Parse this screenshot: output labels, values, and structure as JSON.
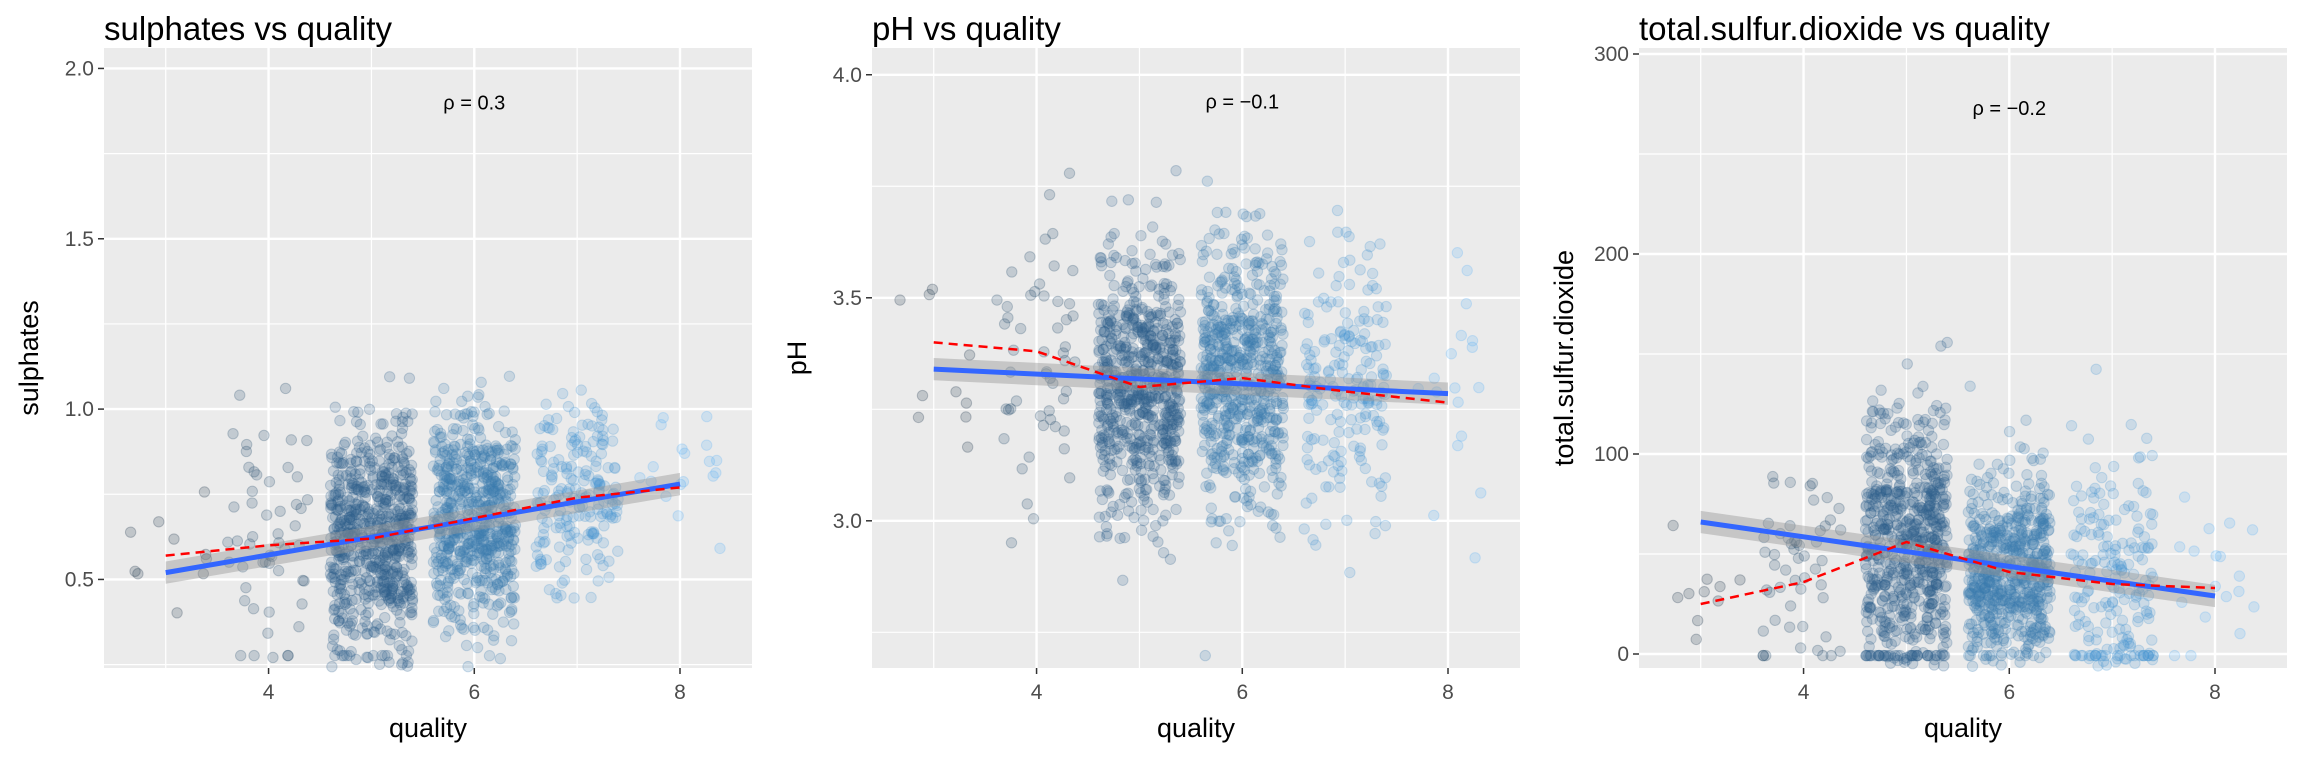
{
  "colors": {
    "panel_bg": "#ebebeb",
    "grid": "#ffffff",
    "points_low": "#132b43",
    "points_high": "#56b1f7",
    "linear_fit": "#3366ff",
    "ci_band": "#999999",
    "loess": "#ff0000"
  },
  "chart_data": [
    {
      "type": "scatter",
      "title": "sulphates vs quality",
      "xlabel": "quality",
      "ylabel": "sulphates",
      "xlim": [
        2.4,
        8.7
      ],
      "ylim": [
        0.24,
        2.06
      ],
      "xticks": [
        4,
        6,
        8
      ],
      "yticks": [
        0.5,
        1.0,
        1.5,
        2.0
      ],
      "ytick_labels": [
        "0.5",
        "1.0",
        "1.5",
        "2.0"
      ],
      "annotation": "ρ = 0.3",
      "annotation_pos": [
        6.0,
        1.9
      ],
      "point_groups": [
        {
          "quality": 3,
          "n": 10,
          "mean": 0.57,
          "sd": 0.1
        },
        {
          "quality": 4,
          "n": 53,
          "mean": 0.6,
          "sd": 0.25
        },
        {
          "quality": 5,
          "n": 681,
          "mean": 0.62,
          "sd": 0.17
        },
        {
          "quality": 6,
          "n": 638,
          "mean": 0.68,
          "sd": 0.16
        },
        {
          "quality": 7,
          "n": 199,
          "mean": 0.74,
          "sd": 0.13
        },
        {
          "quality": 8,
          "n": 18,
          "mean": 0.77,
          "sd": 0.11
        }
      ],
      "linear_fit": {
        "x": [
          3,
          8
        ],
        "y": [
          0.52,
          0.78
        ]
      },
      "loess": {
        "x": [
          3,
          4,
          5,
          6,
          7,
          8
        ],
        "y": [
          0.57,
          0.6,
          0.62,
          0.68,
          0.74,
          0.77
        ]
      }
    },
    {
      "type": "scatter",
      "title": "pH vs quality",
      "xlabel": "quality",
      "ylabel": "pH",
      "xlim": [
        2.4,
        8.7
      ],
      "ylim": [
        2.67,
        4.06
      ],
      "xticks": [
        4,
        6,
        8
      ],
      "yticks": [
        3.0,
        3.5,
        4.0
      ],
      "ytick_labels": [
        "3.0",
        "3.5",
        "4.0"
      ],
      "annotation": "ρ = −0.1",
      "annotation_pos": [
        6.0,
        3.94
      ],
      "point_groups": [
        {
          "quality": 3,
          "n": 10,
          "mean": 3.4,
          "sd": 0.14
        },
        {
          "quality": 4,
          "n": 53,
          "mean": 3.38,
          "sd": 0.18
        },
        {
          "quality": 5,
          "n": 681,
          "mean": 3.3,
          "sd": 0.15
        },
        {
          "quality": 6,
          "n": 638,
          "mean": 3.32,
          "sd": 0.15
        },
        {
          "quality": 7,
          "n": 199,
          "mean": 3.29,
          "sd": 0.15
        },
        {
          "quality": 8,
          "n": 18,
          "mean": 3.27,
          "sd": 0.2
        }
      ],
      "linear_fit": {
        "x": [
          3,
          8
        ],
        "y": [
          3.34,
          3.285
        ]
      },
      "loess": {
        "x": [
          3,
          4,
          5,
          6,
          7,
          8
        ],
        "y": [
          3.4,
          3.38,
          3.3,
          3.32,
          3.29,
          3.265
        ]
      }
    },
    {
      "type": "scatter",
      "title": "total.sulfur.dioxide vs quality",
      "xlabel": "quality",
      "ylabel": "total.sulfur.dioxide",
      "xlim": [
        2.4,
        8.7
      ],
      "ylim": [
        -7,
        303
      ],
      "xticks": [
        4,
        6,
        8
      ],
      "yticks": [
        0,
        100,
        200,
        300
      ],
      "ytick_labels": [
        "0",
        "100",
        "200",
        "300"
      ],
      "annotation": "ρ = −0.2",
      "annotation_pos": [
        6.0,
        273
      ],
      "point_groups": [
        {
          "quality": 3,
          "n": 10,
          "mean": 25,
          "sd": 15
        },
        {
          "quality": 4,
          "n": 53,
          "mean": 36,
          "sd": 27
        },
        {
          "quality": 5,
          "n": 681,
          "mean": 56,
          "sd": 36
        },
        {
          "quality": 6,
          "n": 638,
          "mean": 41,
          "sd": 25
        },
        {
          "quality": 7,
          "n": 199,
          "mean": 35,
          "sd": 32
        },
        {
          "quality": 8,
          "n": 18,
          "mean": 33,
          "sd": 25
        }
      ],
      "linear_fit": {
        "x": [
          3,
          8
        ],
        "y": [
          66,
          29
        ]
      },
      "loess": {
        "x": [
          3,
          4,
          5,
          6,
          7,
          8
        ],
        "y": [
          25,
          36,
          56,
          41,
          35,
          33
        ]
      }
    }
  ]
}
